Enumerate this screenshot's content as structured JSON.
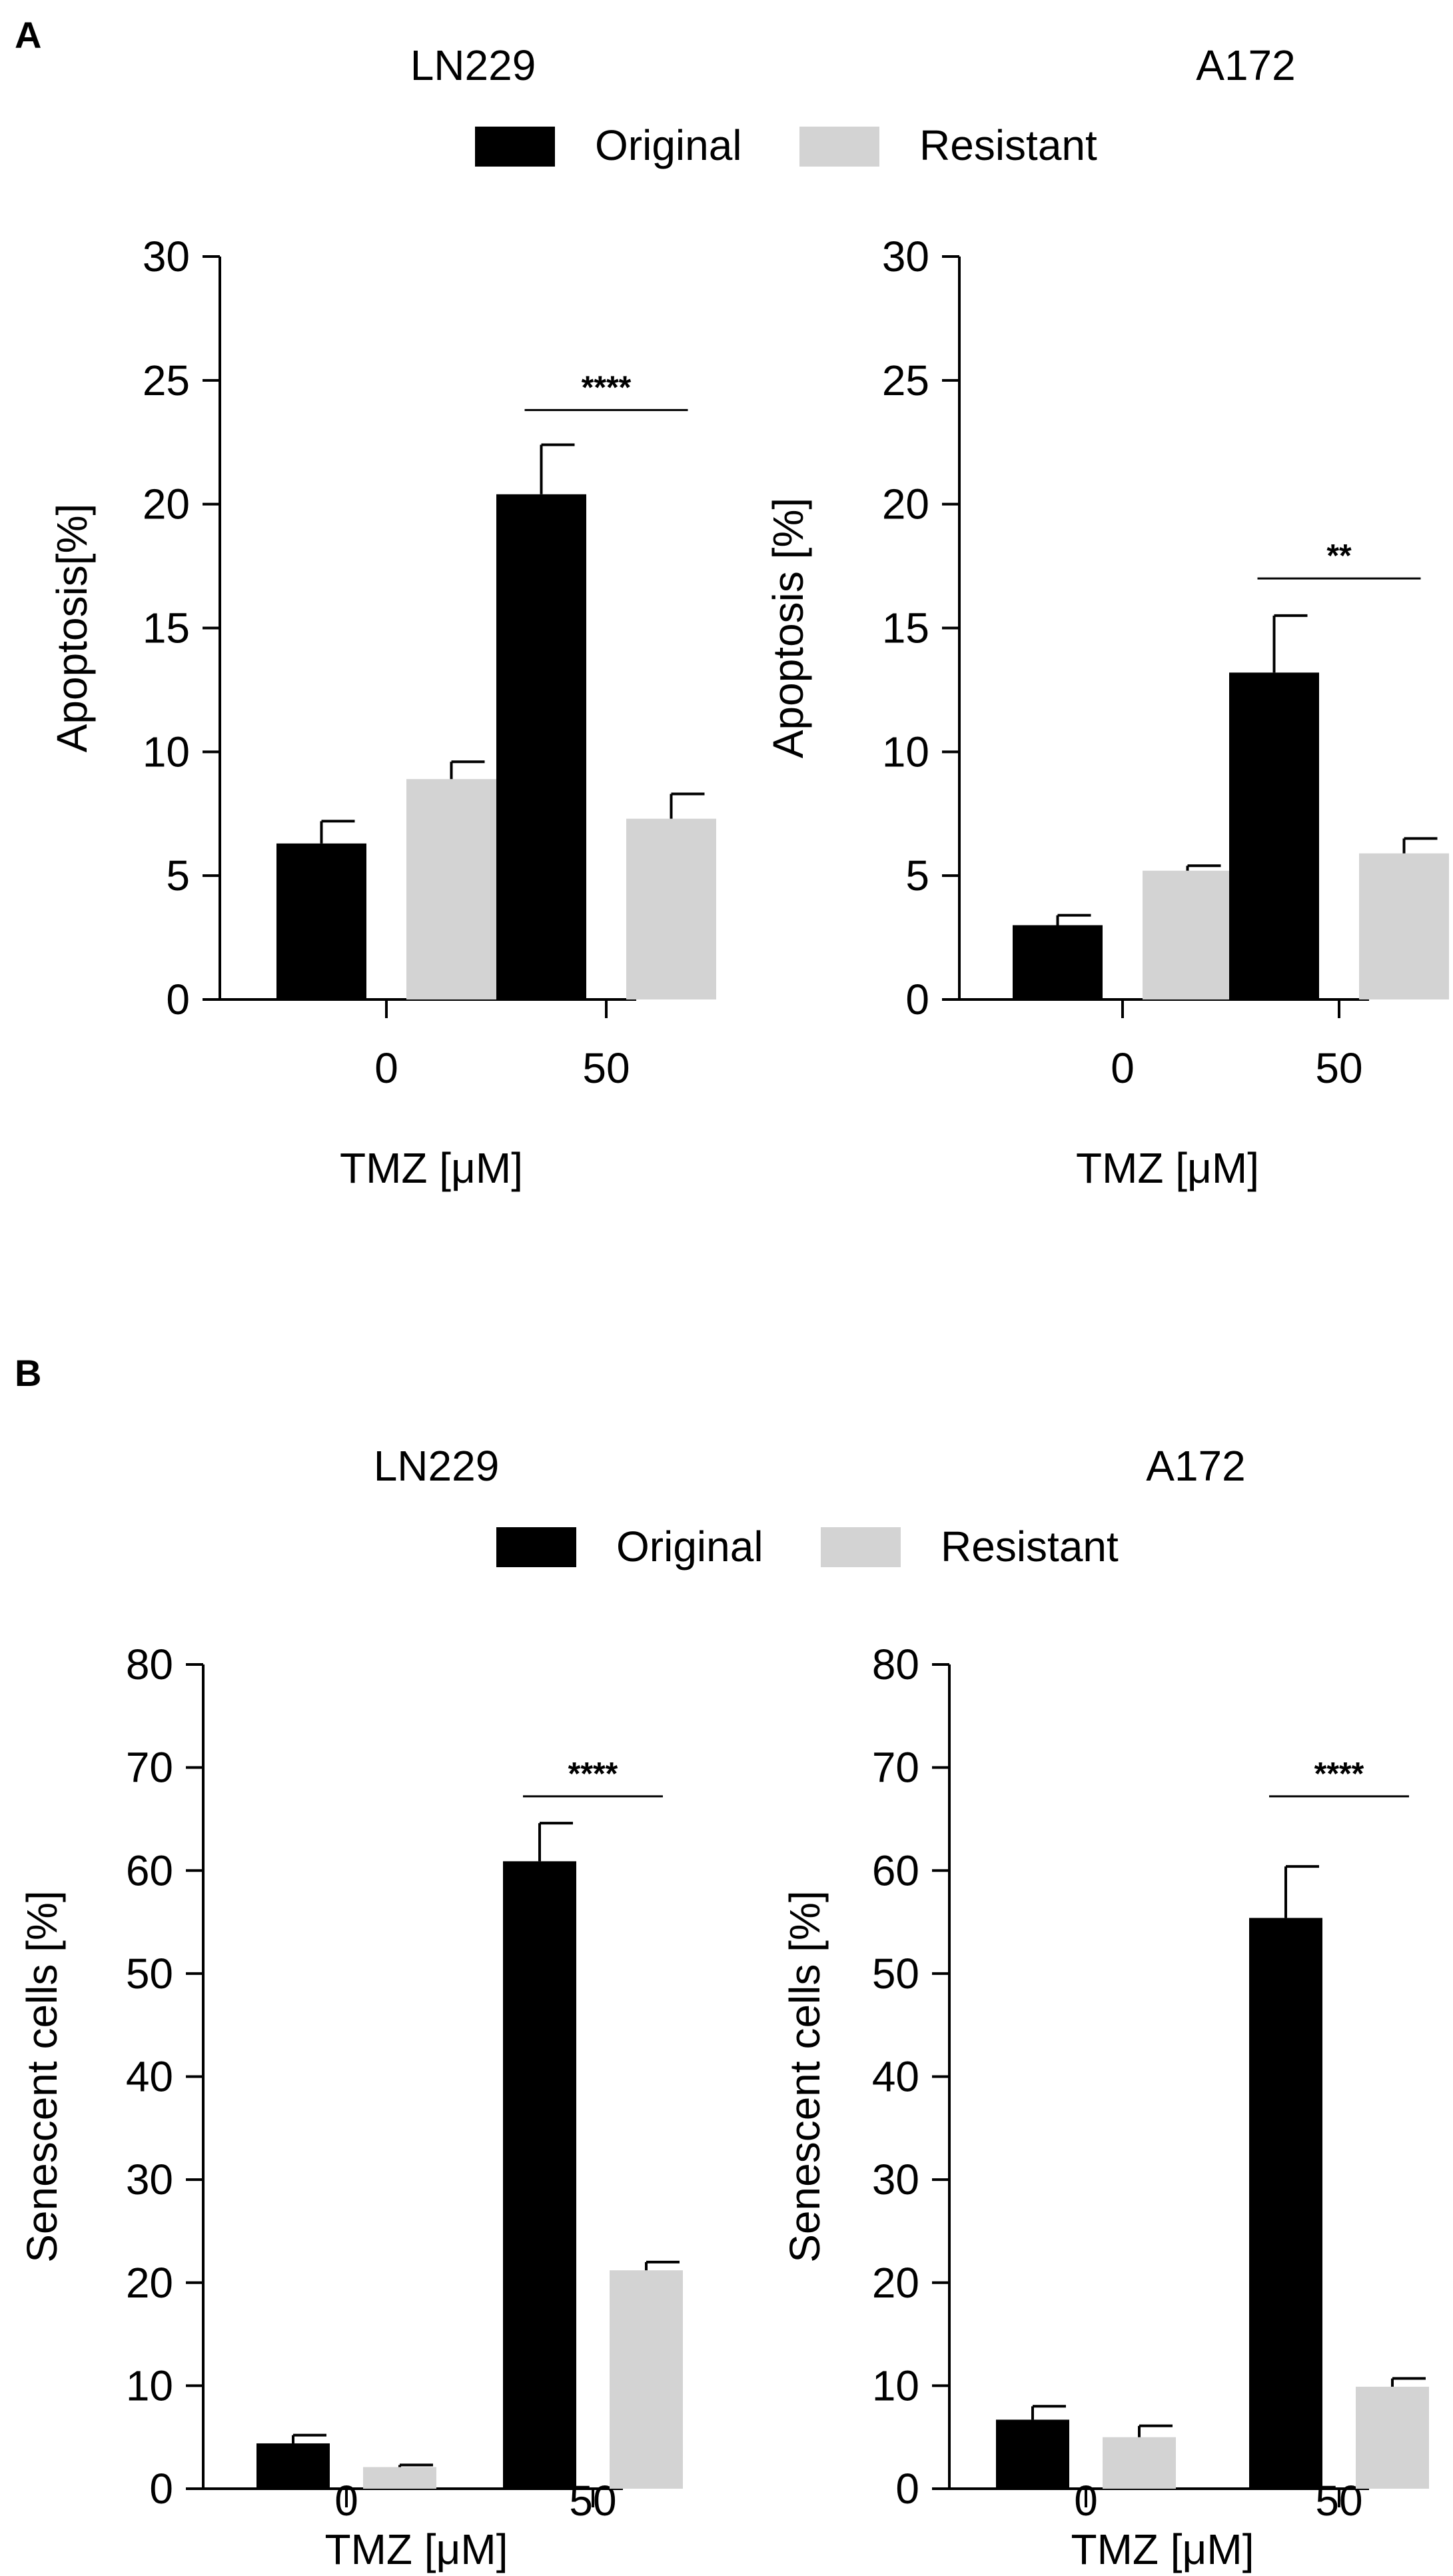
{
  "panels": [
    {
      "letter": "A",
      "legend": [
        "Original",
        "Resistant"
      ],
      "charts_index": [
        0,
        1
      ]
    },
    {
      "letter": "B",
      "legend": [
        "Original",
        "Resistant"
      ],
      "charts_index": [
        2,
        3
      ]
    }
  ],
  "colors": {
    "original": "#000000",
    "resistant": "#d3d3d3",
    "axis": "#000000"
  },
  "chart_data": [
    {
      "type": "bar",
      "panel": "A",
      "title": "LN229",
      "xlabel": "TMZ [μM]",
      "ylabel": "Apoptosis[%]",
      "categories": [
        "0",
        "50"
      ],
      "ylim": [
        0,
        30
      ],
      "yticks": [
        0,
        5,
        10,
        15,
        20,
        25,
        30
      ],
      "series": [
        {
          "name": "Original",
          "values": [
            6.3,
            20.4
          ],
          "errors": [
            0.9,
            2.0
          ]
        },
        {
          "name": "Resistant",
          "values": [
            8.9,
            7.3
          ],
          "errors": [
            0.7,
            1.0
          ]
        }
      ],
      "annotations": [
        {
          "category": "50",
          "text": "****",
          "y": 23.8
        }
      ]
    },
    {
      "type": "bar",
      "panel": "A",
      "title": "A172",
      "xlabel": "TMZ [μM]",
      "ylabel": "Apoptosis [%]",
      "categories": [
        "0",
        "50"
      ],
      "ylim": [
        0,
        30
      ],
      "yticks": [
        0,
        5,
        10,
        15,
        20,
        25,
        30
      ],
      "series": [
        {
          "name": "Original",
          "values": [
            3.0,
            13.2
          ],
          "errors": [
            0.4,
            2.3
          ]
        },
        {
          "name": "Resistant",
          "values": [
            5.2,
            5.9
          ],
          "errors": [
            0.2,
            0.6
          ]
        }
      ],
      "annotations": [
        {
          "category": "50",
          "text": "**",
          "y": 17.0
        }
      ]
    },
    {
      "type": "bar",
      "panel": "B",
      "title": "LN229",
      "xlabel": "TMZ [μM]",
      "ylabel": "Senescent cells [%]",
      "categories": [
        "0",
        "50"
      ],
      "ylim": [
        0,
        80
      ],
      "yticks": [
        0,
        10,
        20,
        30,
        40,
        50,
        60,
        70,
        80
      ],
      "series": [
        {
          "name": "Original",
          "values": [
            4.4,
            60.9
          ],
          "errors": [
            0.8,
            3.7
          ]
        },
        {
          "name": "Resistant",
          "values": [
            2.1,
            21.2
          ],
          "errors": [
            0.2,
            0.8
          ]
        }
      ],
      "annotations": [
        {
          "category": "50",
          "text": "****",
          "y": 67.2
        }
      ]
    },
    {
      "type": "bar",
      "panel": "B",
      "title": "A172",
      "xlabel": "TMZ [μM]",
      "ylabel": "Senescent cells [%]",
      "categories": [
        "0",
        "50"
      ],
      "ylim": [
        0,
        80
      ],
      "yticks": [
        0,
        10,
        20,
        30,
        40,
        50,
        60,
        70,
        80
      ],
      "series": [
        {
          "name": "Original",
          "values": [
            6.7,
            55.4
          ],
          "errors": [
            1.3,
            5.0
          ]
        },
        {
          "name": "Resistant",
          "values": [
            5.0,
            9.9
          ],
          "errors": [
            1.1,
            0.8
          ]
        }
      ],
      "annotations": [
        {
          "category": "50",
          "text": "****",
          "y": 67.2
        }
      ]
    }
  ]
}
